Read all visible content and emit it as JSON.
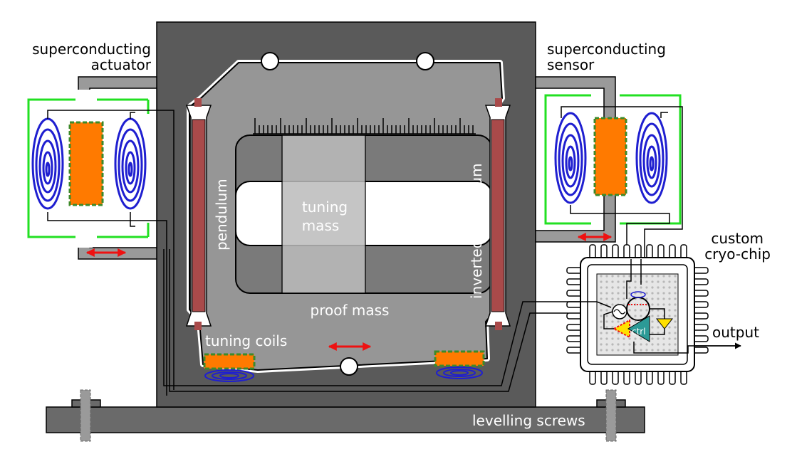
{
  "labels": {
    "actuator_line1": "superconducting",
    "actuator_line2": "actuator",
    "sensor_line1": "superconducting",
    "sensor_line2": "sensor",
    "pendulum": "pendulum",
    "inverted_pendulum": "inverted pendulum",
    "tuning_line1": "tuning",
    "tuning_line2": "mass",
    "proof_mass": "proof mass",
    "tuning_coils": "tuning coils",
    "chip_line1": "custom",
    "chip_line2": "cryo-chip",
    "output": "output",
    "levelling_screws": "levelling screws",
    "ctrl": "ctrl"
  },
  "colors": {
    "frame": "#5a5a5a",
    "proof_mass": "#969696",
    "flexure": "#a94a4a",
    "coil": "#1f1fd0",
    "magnet": "#ff7a00",
    "magnet_border": "#3c8a2a",
    "shield": "#22e022",
    "arrow": "#ee1111",
    "amplifier": "#2c9a96",
    "triangle": "#ffe000"
  }
}
